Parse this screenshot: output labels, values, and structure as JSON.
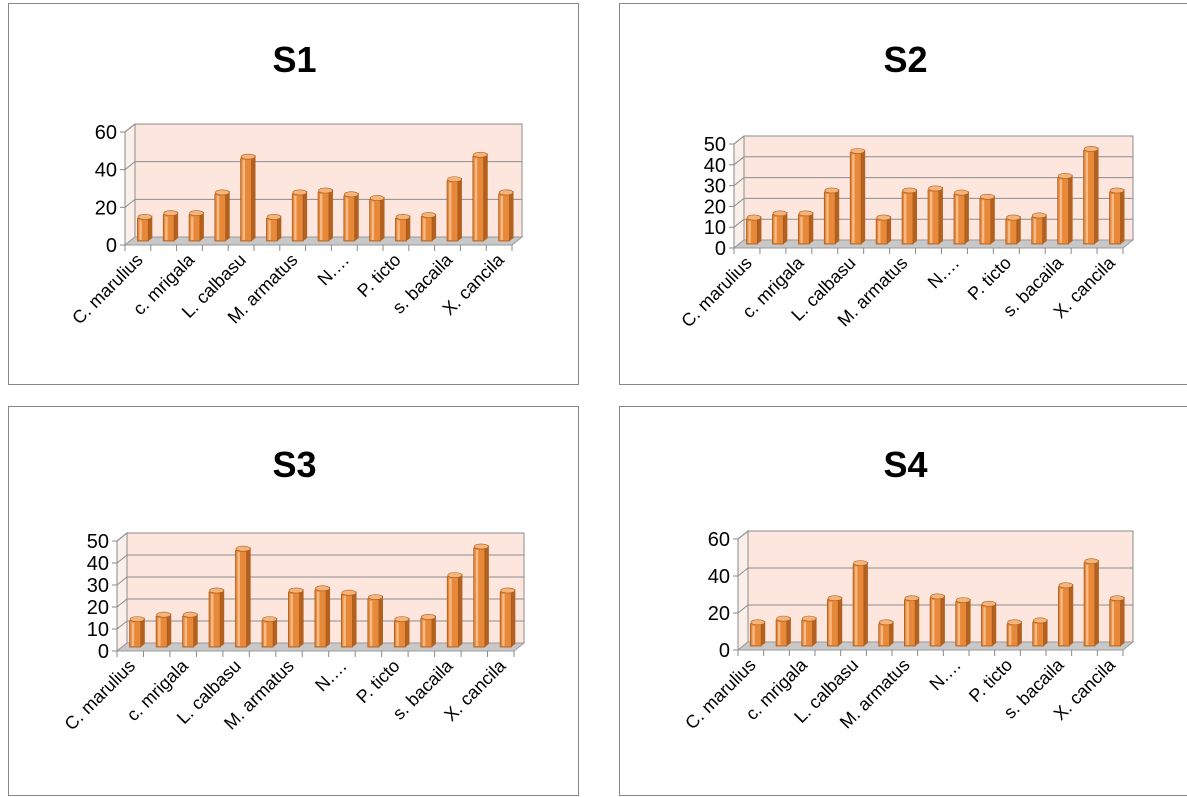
{
  "chart_data": [
    {
      "type": "bar",
      "title": "S1",
      "categories": [
        "C. marulius",
        "",
        "c. mrigala",
        "",
        "L. calbasu",
        "",
        "M. armatus",
        "",
        "N.…",
        "",
        "P. ticto",
        "",
        "s. bacaila",
        "",
        "X. cancila"
      ],
      "values": [
        12,
        14,
        14,
        25,
        44,
        12,
        25,
        26,
        24,
        22,
        12,
        13,
        32,
        45,
        25
      ],
      "ylim": [
        0,
        60
      ],
      "yticks": [
        0,
        20,
        40,
        60
      ],
      "grid": true,
      "xlabel": "",
      "ylabel": ""
    },
    {
      "type": "bar",
      "title": "S2",
      "categories": [
        "C. marulius",
        "",
        "c. mrigala",
        "",
        "L. calbasu",
        "",
        "M. armatus",
        "",
        "N.…",
        "",
        "P. ticto",
        "",
        "s. bacaila",
        "",
        "X. cancila"
      ],
      "values": [
        12,
        14,
        14,
        25,
        44,
        12,
        25,
        26,
        24,
        22,
        12,
        13,
        32,
        45,
        25
      ],
      "ylim": [
        0,
        50
      ],
      "yticks": [
        0,
        10,
        20,
        30,
        40,
        50
      ],
      "grid": true,
      "xlabel": "",
      "ylabel": ""
    },
    {
      "type": "bar",
      "title": "S3",
      "categories": [
        "C. marulius",
        "",
        "c. mrigala",
        "",
        "L. calbasu",
        "",
        "M. armatus",
        "",
        "N.…",
        "",
        "P. ticto",
        "",
        "s. bacaila",
        "",
        "X. cancila"
      ],
      "values": [
        12,
        14,
        14,
        25,
        44,
        12,
        25,
        26,
        24,
        22,
        12,
        13,
        32,
        45,
        25
      ],
      "ylim": [
        0,
        50
      ],
      "yticks": [
        0,
        10,
        20,
        30,
        40,
        50
      ],
      "grid": true,
      "xlabel": "",
      "ylabel": ""
    },
    {
      "type": "bar",
      "title": "S4",
      "categories": [
        "C. marulius",
        "",
        "c. mrigala",
        "",
        "L. calbasu",
        "",
        "M. armatus",
        "",
        "N.…",
        "",
        "P. ticto",
        "",
        "s. bacaila",
        "",
        "X. cancila"
      ],
      "values": [
        12,
        14,
        14,
        25,
        44,
        12,
        25,
        26,
        24,
        22,
        12,
        13,
        32,
        45,
        25
      ],
      "ylim": [
        0,
        60
      ],
      "yticks": [
        0,
        20,
        40,
        60
      ],
      "grid": true,
      "xlabel": "",
      "ylabel": ""
    }
  ],
  "colors": {
    "bar_front": "#E8893A",
    "bar_side": "#B4601E",
    "bar_top": "#F5B47A",
    "bar_highlight": "#F9C79A",
    "wall": "#FCE6DE",
    "floor": "#C8C8C8",
    "gridline": "#8C8C8C"
  }
}
